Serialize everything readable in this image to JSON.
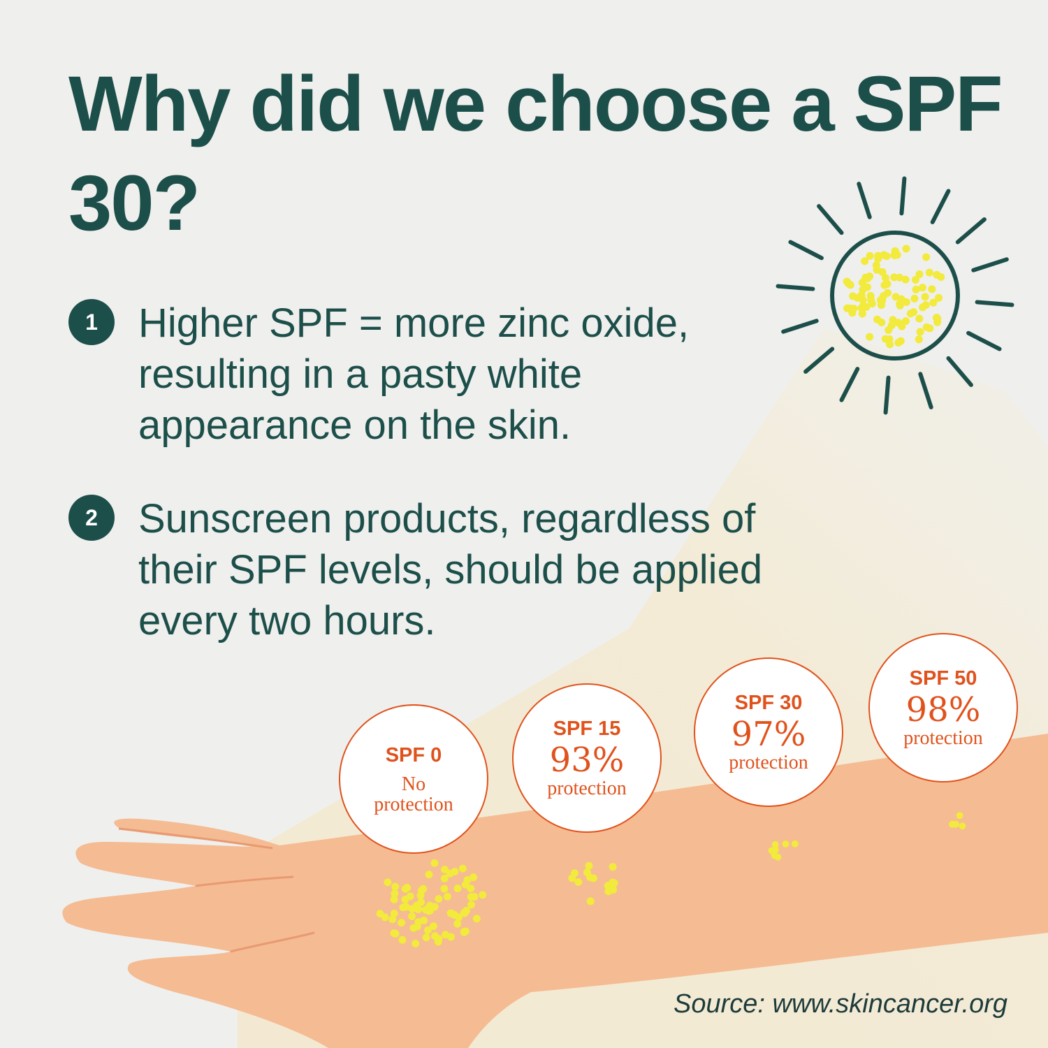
{
  "title": "Why did we choose a SPF 30?",
  "points": [
    {
      "number": "1",
      "text": "Higher SPF = more zinc oxide, resulting in a pasty white appearance on the skin."
    },
    {
      "number": "2",
      "text": "Sunscreen products, regardless of their SPF levels, should be applied every two hours."
    }
  ],
  "spf_levels": [
    {
      "label": "SPF 0",
      "percent": "",
      "protection": "No protection"
    },
    {
      "label": "SPF 15",
      "percent": "93%",
      "protection": "protection"
    },
    {
      "label": "SPF 30",
      "percent": "97%",
      "protection": "protection"
    },
    {
      "label": "SPF 50",
      "percent": "98%",
      "protection": "protection"
    }
  ],
  "source": "Source: www.skincancer.org",
  "colors": {
    "primary": "#1d4f4a",
    "accent": "#e0521c",
    "background": "#efefed",
    "skin": "#f5b98f",
    "zinc_dots": "#f2ea3c"
  },
  "icons": [
    "sun-icon",
    "arm-illustration"
  ]
}
